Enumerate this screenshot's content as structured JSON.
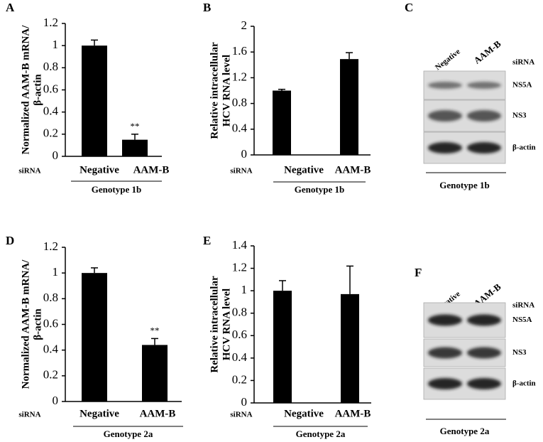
{
  "chart_data": [
    {
      "type": "bar",
      "panel": "A",
      "ylabel_lines": [
        "Normalized AAM-B mRNA/",
        "β-actin"
      ],
      "categories": [
        "Negative",
        "AAM-B"
      ],
      "values": [
        1,
        0.15
      ],
      "errors": [
        0.05,
        0.05
      ],
      "annotations": [
        {
          "index": 1,
          "text": "**"
        }
      ],
      "color": "#000000",
      "ylim": [
        0,
        1.2
      ],
      "yticks": [
        0,
        0.2,
        0.4,
        0.6,
        0.8,
        1,
        1.2
      ],
      "row_label": "siRNA",
      "group_label": "Genotype 1b"
    },
    {
      "type": "bar",
      "panel": "B",
      "ylabel_lines": [
        "Relative intracellular",
        "HCV RNA level"
      ],
      "categories": [
        "Negative",
        "AAM-B"
      ],
      "values": [
        1,
        1.49
      ],
      "errors": [
        0.02,
        0.1
      ],
      "color": "#000000",
      "ylim": [
        0,
        2
      ],
      "yticks": [
        0,
        0.4,
        0.8,
        1.2,
        1.6,
        2
      ],
      "row_label": "siRNA",
      "group_label": "Genotype 1b"
    },
    {
      "type": "bar",
      "panel": "D",
      "ylabel_lines": [
        "Normalized AAM-B mRNA/",
        "β-actin"
      ],
      "categories": [
        "Negative",
        "AAM-B"
      ],
      "values": [
        1,
        0.44
      ],
      "errors": [
        0.04,
        0.05
      ],
      "annotations": [
        {
          "index": 1,
          "text": "**"
        }
      ],
      "color": "#000000",
      "ylim": [
        0,
        1.2
      ],
      "yticks": [
        0,
        0.2,
        0.4,
        0.6,
        0.8,
        1,
        1.2
      ],
      "row_label": "siRNA",
      "group_label": "Genotype 2a"
    },
    {
      "type": "bar",
      "panel": "E",
      "ylabel_lines": [
        "Relative intracellular",
        "HCV RNA level"
      ],
      "categories": [
        "Negative",
        "AAM-B"
      ],
      "values": [
        1,
        0.97
      ],
      "errors": [
        0.09,
        0.25
      ],
      "color": "#000000",
      "ylim": [
        0,
        1.4
      ],
      "yticks": [
        0,
        0.2,
        0.4,
        0.6,
        0.8,
        1,
        1.2,
        1.4
      ],
      "row_label": "siRNA",
      "group_label": "Genotype 2a"
    }
  ],
  "blots": [
    {
      "panel": "C",
      "row_label": "siRNA",
      "lanes": [
        "Negative",
        "AAM-B"
      ],
      "bands": [
        "NS5A",
        "NS3",
        "β-actin"
      ],
      "group_label": "Genotype 1b"
    },
    {
      "panel": "F",
      "row_label": "siRNA",
      "lanes": [
        "Negative",
        "AAM-B"
      ],
      "bands": [
        "NS5A",
        "NS3",
        "β-actin"
      ],
      "group_label": "Genotype 2a"
    }
  ]
}
